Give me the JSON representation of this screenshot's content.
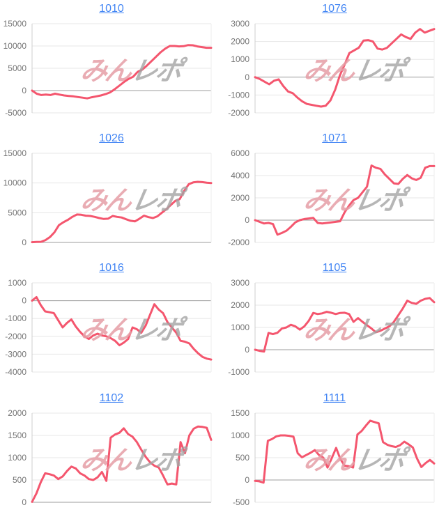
{
  "watermark": {
    "text_pink": "みん",
    "text_gray": "レポ"
  },
  "style": {
    "line_color": "#f4566e",
    "grid_color": "#e7e7e7",
    "baseline_color": "#9e9e9e",
    "axis_color": "#cfcfcf",
    "right_border_color": "#ededed",
    "label_color": "#757575",
    "title_color": "#4285f4"
  },
  "chart_data": [
    {
      "type": "line",
      "title": "1010",
      "xlabel": "",
      "ylabel": "",
      "ylim": [
        -5000,
        15000
      ],
      "yticks": [
        15000,
        10000,
        5000,
        0,
        -5000
      ],
      "grid": true,
      "values": [
        0,
        -700,
        -1000,
        -900,
        -1000,
        -700,
        -900,
        -1100,
        -1200,
        -1300,
        -1450,
        -1600,
        -1750,
        -1500,
        -1300,
        -1100,
        -800,
        -400,
        300,
        1100,
        1900,
        2600,
        3100,
        4200,
        4700,
        5600,
        6600,
        7600,
        8600,
        9400,
        10000,
        10000,
        9900,
        9950,
        10200,
        10150,
        9900,
        9750,
        9600,
        9600
      ]
    },
    {
      "type": "line",
      "title": "1076",
      "xlabel": "",
      "ylabel": "",
      "ylim": [
        -2000,
        3000
      ],
      "yticks": [
        3000,
        2000,
        1000,
        0,
        -1000,
        -2000
      ],
      "grid": true,
      "values": [
        0,
        -100,
        -250,
        -400,
        -200,
        -120,
        -500,
        -800,
        -900,
        -1150,
        -1350,
        -1500,
        -1550,
        -1600,
        -1650,
        -1600,
        -1300,
        -700,
        100,
        700,
        1350,
        1500,
        1650,
        2050,
        2080,
        2000,
        1600,
        1550,
        1650,
        1900,
        2150,
        2400,
        2250,
        2150,
        2500,
        2700,
        2500,
        2600,
        2700
      ]
    },
    {
      "type": "line",
      "title": "1026",
      "xlabel": "",
      "ylabel": "",
      "ylim": [
        0,
        15000
      ],
      "yticks": [
        15000,
        10000,
        5000,
        0
      ],
      "grid": true,
      "values": [
        50,
        80,
        100,
        400,
        900,
        1700,
        2900,
        3400,
        3800,
        4300,
        4700,
        4650,
        4500,
        4450,
        4300,
        4100,
        3950,
        4000,
        4450,
        4300,
        4200,
        3900,
        3650,
        3550,
        4000,
        4500,
        4250,
        4100,
        4400,
        5000,
        5600,
        6300,
        7000,
        7300,
        8700,
        9800,
        10100,
        10200,
        10150,
        10050,
        10000
      ]
    },
    {
      "type": "line",
      "title": "1071",
      "xlabel": "",
      "ylabel": "",
      "ylim": [
        -2000,
        6000
      ],
      "yticks": [
        6000,
        4000,
        2000,
        0,
        -2000
      ],
      "grid": true,
      "values": [
        0,
        -150,
        -300,
        -250,
        -350,
        -1300,
        -1150,
        -950,
        -600,
        -200,
        0,
        100,
        150,
        200,
        -250,
        -300,
        -250,
        -200,
        -150,
        -100,
        700,
        1300,
        1800,
        2000,
        2500,
        3000,
        4900,
        4700,
        4600,
        4100,
        3700,
        3300,
        3250,
        3700,
        4050,
        3750,
        3600,
        3800,
        4700,
        4850,
        4850
      ]
    },
    {
      "type": "line",
      "title": "1016",
      "xlabel": "",
      "ylabel": "",
      "ylim": [
        -4000,
        1000
      ],
      "yticks": [
        1000,
        0,
        -1000,
        -2000,
        -3000,
        -4000
      ],
      "grid": true,
      "values": [
        0,
        200,
        -250,
        -600,
        -650,
        -700,
        -1100,
        -1500,
        -1250,
        -1050,
        -1450,
        -1750,
        -2000,
        -2150,
        -1950,
        -1850,
        -1950,
        -2000,
        -2100,
        -2250,
        -2500,
        -2350,
        -2150,
        -1500,
        -1600,
        -1800,
        -1400,
        -800,
        -200,
        -500,
        -700,
        -1200,
        -1500,
        -1800,
        -2250,
        -2300,
        -2400,
        -2700,
        -2950,
        -3150,
        -3250,
        -3300
      ]
    },
    {
      "type": "line",
      "title": "1105",
      "xlabel": "",
      "ylabel": "",
      "ylim": [
        -1000,
        3000
      ],
      "yticks": [
        3000,
        2000,
        1000,
        0,
        -1000
      ],
      "grid": true,
      "values": [
        0,
        -50,
        -80,
        750,
        700,
        760,
        950,
        1000,
        1120,
        1050,
        900,
        1050,
        1300,
        1650,
        1600,
        1630,
        1700,
        1660,
        1600,
        1650,
        1660,
        1600,
        1250,
        1420,
        1250,
        1100,
        950,
        780,
        850,
        950,
        1050,
        1250,
        1550,
        1850,
        2200,
        2100,
        2060,
        2200,
        2280,
        2320,
        2130
      ]
    },
    {
      "type": "line",
      "title": "1102",
      "xlabel": "",
      "ylabel": "",
      "ylim": [
        0,
        2000
      ],
      "yticks": [
        2000,
        1500,
        1000,
        500,
        0
      ],
      "grid": true,
      "values": [
        10,
        200,
        450,
        650,
        630,
        600,
        520,
        580,
        700,
        800,
        760,
        650,
        600,
        520,
        500,
        560,
        680,
        480,
        1450,
        1520,
        1560,
        1660,
        1530,
        1470,
        1350,
        1180,
        1020,
        900,
        820,
        780,
        600,
        400,
        420,
        400,
        1350,
        1100,
        1500,
        1650,
        1700,
        1690,
        1670,
        1400
      ]
    },
    {
      "type": "line",
      "title": "1111",
      "xlabel": "",
      "ylabel": "",
      "ylim": [
        -500,
        1500
      ],
      "yticks": [
        1500,
        1000,
        500,
        0,
        -500
      ],
      "grid": true,
      "values": [
        -20,
        -30,
        -60,
        880,
        920,
        980,
        1000,
        1000,
        990,
        970,
        600,
        510,
        560,
        610,
        670,
        560,
        500,
        280,
        490,
        720,
        470,
        320,
        310,
        280,
        1020,
        1100,
        1220,
        1330,
        1300,
        1270,
        850,
        790,
        760,
        740,
        780,
        860,
        800,
        730,
        480,
        290,
        380,
        450,
        370
      ]
    }
  ]
}
